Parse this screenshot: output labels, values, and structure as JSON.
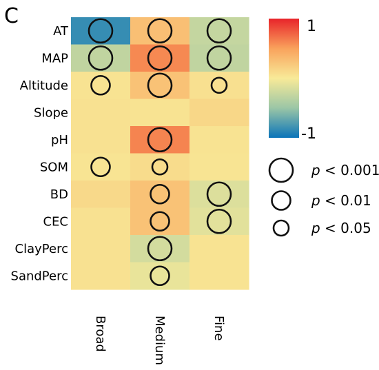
{
  "panel_label": "C",
  "chart_data": {
    "type": "heatmap",
    "rows": [
      "AT",
      "MAP",
      "Altitude",
      "Slope",
      "pH",
      "SOM",
      "BD",
      "CEC",
      "ClayPerc",
      "SandPerc"
    ],
    "columns": [
      "Broad",
      "Medium",
      "Fine"
    ],
    "values": [
      [
        -0.85,
        0.3,
        -0.28
      ],
      [
        -0.3,
        0.6,
        -0.3
      ],
      [
        0.05,
        0.28,
        0.07
      ],
      [
        0.06,
        0.05,
        0.13
      ],
      [
        0.06,
        0.62,
        0.05
      ],
      [
        0.04,
        0.1,
        0.04
      ],
      [
        0.12,
        0.28,
        -0.15
      ],
      [
        0.06,
        0.28,
        -0.12
      ],
      [
        0.06,
        -0.2,
        0.05
      ],
      [
        0.06,
        -0.08,
        0.05
      ]
    ],
    "significance": [
      [
        "p<0.001",
        "p<0.001",
        "p<0.001"
      ],
      [
        "p<0.001",
        "p<0.001",
        "p<0.001"
      ],
      [
        "p<0.01",
        "p<0.001",
        "p<0.05"
      ],
      [
        null,
        null,
        null
      ],
      [
        null,
        "p<0.001",
        null
      ],
      [
        "p<0.01",
        "p<0.05",
        null
      ],
      [
        null,
        "p<0.01",
        "p<0.001"
      ],
      [
        null,
        "p<0.01",
        "p<0.001"
      ],
      [
        null,
        "p<0.001",
        null
      ],
      [
        null,
        "p<0.01",
        null
      ]
    ],
    "colorbar": {
      "min": -1,
      "max": 1,
      "min_label": "-1",
      "max_label": "1",
      "colors": [
        "#0a74b9",
        "#9bc6a6",
        "#f8ea98",
        "#f9a25c",
        "#e8242a"
      ]
    },
    "legend": [
      {
        "key": "p<0.001",
        "p": "p",
        "rest": " < 0.001"
      },
      {
        "key": "p<0.01",
        "p": "p",
        "rest": " < 0.01"
      },
      {
        "key": "p<0.05",
        "p": "p",
        "rest": " < 0.05"
      }
    ]
  }
}
